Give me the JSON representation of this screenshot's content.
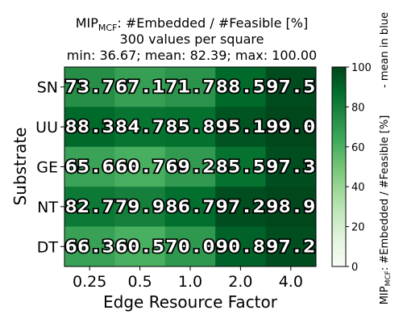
{
  "chart_data": {
    "type": "heatmap",
    "title_main": "MIP",
    "title_sub": "MCF",
    "title_rest": ": #Embedded / #Feasible [%]",
    "subtitle_1": "300 values per square",
    "subtitle_2": "min: 36.67; mean: 82.39; max: 100.00",
    "xlabel": "Edge Resource Factor",
    "ylabel": "Substrate",
    "x_categories": [
      "0.25",
      "0.5",
      "1.0",
      "2.0",
      "4.0"
    ],
    "y_categories": [
      "SN",
      "UU",
      "GE",
      "NT",
      "DT"
    ],
    "values": [
      [
        73.7,
        67.1,
        71.7,
        88.5,
        97.5
      ],
      [
        88.3,
        84.7,
        85.8,
        95.1,
        99.0
      ],
      [
        65.6,
        60.7,
        69.2,
        85.5,
        97.3
      ],
      [
        82.7,
        79.9,
        86.7,
        97.2,
        98.9
      ],
      [
        66.3,
        60.5,
        70.0,
        90.8,
        97.2
      ]
    ],
    "value_labels": [
      [
        "73.7",
        "67.1",
        "71.7",
        "88.5",
        "97.5"
      ],
      [
        "88.3",
        "84.7",
        "85.8",
        "95.1",
        "99.0"
      ],
      [
        "65.6",
        "60.7",
        "69.2",
        "85.5",
        "97.3"
      ],
      [
        "82.7",
        "79.9",
        "86.7",
        "97.2",
        "98.9"
      ],
      [
        "66.3",
        "60.5",
        "70.0",
        "90.8",
        "97.2"
      ]
    ],
    "colorbar": {
      "range": [
        0,
        100
      ],
      "ticks": [
        0,
        20,
        40,
        60,
        80,
        100
      ],
      "tick_labels": [
        "0",
        "20",
        "40",
        "60",
        "80",
        "100"
      ],
      "label_main": "MIP",
      "label_sub": "MCF",
      "label_rest": ": #Embedded / #Feasible [%]",
      "label_secondary": "- mean in blue",
      "colormap": "Greens"
    }
  }
}
